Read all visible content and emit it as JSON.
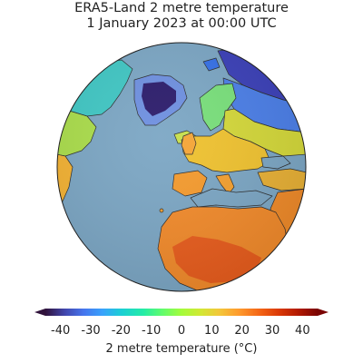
{
  "title": {
    "line1": "ERA5-Land 2 metre temperature",
    "line2": "1 January 2023 at 00:00 UTC"
  },
  "colorbar": {
    "label": "2 metre temperature (°C)",
    "min": -45,
    "max": 45,
    "ticks": [
      {
        "value": -40,
        "label": "-40"
      },
      {
        "value": -30,
        "label": "-30"
      },
      {
        "value": -20,
        "label": "-20"
      },
      {
        "value": -10,
        "label": "-10"
      },
      {
        "value": 0,
        "label": "0"
      },
      {
        "value": 10,
        "label": "10"
      },
      {
        "value": 20,
        "label": "20"
      },
      {
        "value": 30,
        "label": "30"
      },
      {
        "value": 40,
        "label": "40"
      }
    ],
    "colormap": "turbo",
    "extend": "both"
  },
  "map": {
    "projection": "orthographic",
    "ocean_color": "#7ba6c4",
    "coastline_color": "#2a2a2a"
  }
}
